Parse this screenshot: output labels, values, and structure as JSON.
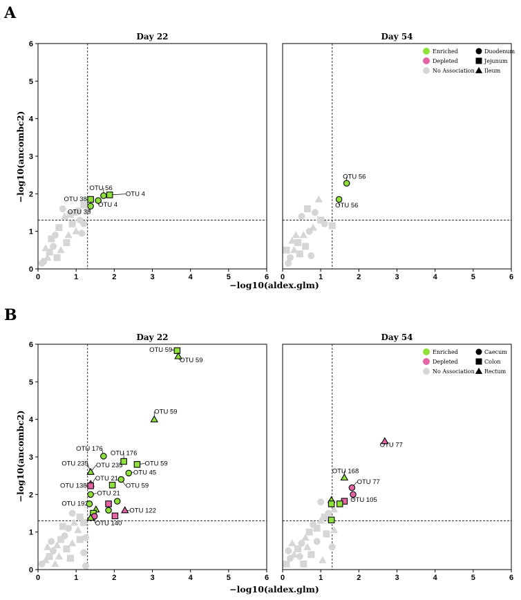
{
  "figure": {
    "panel_labels": [
      "A",
      "B"
    ],
    "xlabel": "−log10(aldex.glm)",
    "ylabel": "−log10(ancombc2)"
  },
  "legends": {
    "A": {
      "associations": [
        {
          "label": "Enriched",
          "color": "#8fe03a"
        },
        {
          "label": "Depleted",
          "color": "#e465a6"
        },
        {
          "label": "No Association",
          "color": "#d6d6d6"
        }
      ],
      "sites": [
        {
          "label": "Duodenum",
          "shape": "circle"
        },
        {
          "label": "Jejunum",
          "shape": "square"
        },
        {
          "label": "Ileum",
          "shape": "triangle"
        }
      ]
    },
    "B": {
      "associations": [
        {
          "label": "Enriched",
          "color": "#8fe03a"
        },
        {
          "label": "Depleted",
          "color": "#e465a6"
        },
        {
          "label": "No Association",
          "color": "#d6d6d6"
        }
      ],
      "sites": [
        {
          "label": "Caecum",
          "shape": "circle"
        },
        {
          "label": "Colon",
          "shape": "square"
        },
        {
          "label": "Rectum",
          "shape": "triangle"
        }
      ]
    }
  },
  "colors": {
    "enriched": "#8fe03a",
    "depleted": "#e465a6",
    "none": "#d6d6d6"
  },
  "chart_data": [
    {
      "type": "scatter",
      "id": "A-day22",
      "panel": "A",
      "title": "Day 22",
      "xlabel": "−log10(aldex.glm)",
      "ylabel": "−log10(ancombc2)",
      "xlim": [
        0,
        6
      ],
      "ylim": [
        0,
        6
      ],
      "xticks": [
        0,
        1,
        2,
        3,
        4,
        5,
        6
      ],
      "yticks": [
        0,
        1,
        2,
        3,
        4,
        5,
        6
      ],
      "thresholds": {
        "x": 1.3,
        "y": 1.3
      },
      "grid": false,
      "no_association_points": [
        [
          0.45,
          0.9
        ],
        [
          0.55,
          1.1
        ],
        [
          0.7,
          1.4
        ],
        [
          0.65,
          1.6
        ],
        [
          0.85,
          1.45
        ],
        [
          0.95,
          1.5
        ],
        [
          1.05,
          1.55
        ],
        [
          1.2,
          1.7
        ],
        [
          1.3,
          1.6
        ],
        [
          1.1,
          1.3
        ],
        [
          0.9,
          1.2
        ],
        [
          1.0,
          1.0
        ],
        [
          1.2,
          1.2
        ],
        [
          0.75,
          0.7
        ],
        [
          0.6,
          0.5
        ],
        [
          0.4,
          0.6
        ],
        [
          0.3,
          0.45
        ],
        [
          0.25,
          0.3
        ],
        [
          0.15,
          0.2
        ],
        [
          0.5,
          0.3
        ],
        [
          0.8,
          0.9
        ],
        [
          1.15,
          0.95
        ],
        [
          0.35,
          0.8
        ],
        [
          0.2,
          0.55
        ],
        [
          0.1,
          0.15
        ]
      ],
      "points": [
        {
          "x": 1.72,
          "y": 1.95,
          "group": "enriched",
          "shape": "circle"
        },
        {
          "x": 1.58,
          "y": 1.82,
          "group": "enriched",
          "shape": "circle"
        },
        {
          "x": 1.38,
          "y": 1.67,
          "group": "enriched",
          "shape": "circle"
        },
        {
          "x": 1.38,
          "y": 1.85,
          "group": "enriched",
          "shape": "square"
        },
        {
          "x": 1.88,
          "y": 1.97,
          "group": "enriched",
          "shape": "square"
        }
      ],
      "annotations": [
        {
          "text": "OTU 56",
          "x": 1.35,
          "y": 2.1,
          "px": 1.72,
          "py": 1.95,
          "anchor": "start"
        },
        {
          "text": "OTU 4",
          "x": 2.3,
          "y": 1.94,
          "px": 1.88,
          "py": 1.97,
          "anchor": "start"
        },
        {
          "text": "OTU 38",
          "x": 0.68,
          "y": 1.8,
          "px": 1.38,
          "py": 1.85,
          "anchor": "start"
        },
        {
          "text": "OTU 4",
          "x": 1.58,
          "y": 1.66,
          "px": 1.58,
          "py": 1.82,
          "anchor": "start"
        },
        {
          "text": "OTU 38",
          "x": 0.78,
          "y": 1.46,
          "px": 1.38,
          "py": 1.67,
          "anchor": "start"
        }
      ]
    },
    {
      "type": "scatter",
      "id": "A-day54",
      "panel": "A",
      "title": "Day 54",
      "xlabel": "−log10(aldex.glm)",
      "ylabel": "",
      "xlim": [
        0,
        6
      ],
      "ylim": [
        0,
        6
      ],
      "xticks": [
        0,
        1,
        2,
        3,
        4,
        5,
        6
      ],
      "yticks": [],
      "thresholds": {
        "x": 1.3,
        "y": 1.3
      },
      "grid": false,
      "legend_position": "top-right",
      "no_association_points": [
        [
          0.5,
          1.4
        ],
        [
          0.65,
          1.6
        ],
        [
          0.95,
          1.85
        ],
        [
          0.85,
          1.5
        ],
        [
          1.0,
          1.3
        ],
        [
          0.55,
          0.9
        ],
        [
          0.7,
          1.0
        ],
        [
          0.4,
          0.7
        ],
        [
          0.3,
          0.5
        ],
        [
          0.2,
          0.3
        ],
        [
          0.6,
          0.6
        ],
        [
          0.8,
          1.1
        ],
        [
          1.1,
          1.2
        ],
        [
          1.3,
          1.15
        ],
        [
          0.35,
          0.9
        ],
        [
          0.15,
          0.15
        ],
        [
          0.45,
          0.4
        ],
        [
          0.25,
          0.75
        ],
        [
          0.75,
          0.35
        ],
        [
          0.1,
          0.5
        ]
      ],
      "points": [
        {
          "x": 1.68,
          "y": 2.28,
          "group": "enriched",
          "shape": "circle"
        },
        {
          "x": 1.48,
          "y": 1.85,
          "group": "enriched",
          "shape": "circle"
        }
      ],
      "annotations": [
        {
          "text": "OTU 56",
          "x": 1.58,
          "y": 2.4,
          "px": 1.68,
          "py": 2.28,
          "anchor": "start"
        },
        {
          "text": "OTU 56",
          "x": 1.38,
          "y": 1.64,
          "px": 1.48,
          "py": 1.85,
          "anchor": "start"
        }
      ]
    },
    {
      "type": "scatter",
      "id": "B-day22",
      "panel": "B",
      "title": "Day 22",
      "xlabel": "−log10(aldex.glm)",
      "ylabel": "−log10(ancombc2)",
      "xlim": [
        0,
        6
      ],
      "ylim": [
        0,
        6
      ],
      "xticks": [
        0,
        1,
        2,
        3,
        4,
        5,
        6
      ],
      "yticks": [
        0,
        1,
        2,
        3,
        4,
        5,
        6
      ],
      "thresholds": {
        "x": 1.3,
        "y": 1.3
      },
      "grid": false,
      "no_association_points": [
        [
          0.9,
          1.5
        ],
        [
          1.1,
          1.4
        ],
        [
          0.95,
          1.25
        ],
        [
          0.8,
          1.1
        ],
        [
          1.2,
          1.25
        ],
        [
          1.05,
          1.05
        ],
        [
          0.7,
          0.9
        ],
        [
          0.6,
          0.8
        ],
        [
          0.5,
          0.65
        ],
        [
          0.4,
          0.5
        ],
        [
          0.3,
          0.35
        ],
        [
          0.2,
          0.25
        ],
        [
          0.1,
          0.15
        ],
        [
          0.75,
          0.55
        ],
        [
          0.55,
          0.35
        ],
        [
          1.2,
          0.45
        ],
        [
          1.1,
          0.8
        ],
        [
          0.9,
          0.7
        ],
        [
          0.35,
          0.75
        ],
        [
          0.65,
          1.15
        ],
        [
          0.45,
          0.15
        ],
        [
          1.25,
          0.85
        ],
        [
          0.85,
          0.3
        ],
        [
          0.25,
          0.6
        ],
        [
          1.25,
          0.1
        ]
      ],
      "points": [
        {
          "x": 3.65,
          "y": 5.83,
          "group": "enriched",
          "shape": "square"
        },
        {
          "x": 3.68,
          "y": 5.68,
          "group": "enriched",
          "shape": "triangle"
        },
        {
          "x": 3.05,
          "y": 4.0,
          "group": "enriched",
          "shape": "triangle"
        },
        {
          "x": 1.72,
          "y": 3.02,
          "group": "enriched",
          "shape": "circle"
        },
        {
          "x": 2.25,
          "y": 2.88,
          "group": "enriched",
          "shape": "square"
        },
        {
          "x": 2.6,
          "y": 2.8,
          "group": "enriched",
          "shape": "square"
        },
        {
          "x": 1.38,
          "y": 2.6,
          "group": "enriched",
          "shape": "triangle"
        },
        {
          "x": 2.38,
          "y": 2.57,
          "group": "enriched",
          "shape": "circle"
        },
        {
          "x": 2.18,
          "y": 2.4,
          "group": "enriched",
          "shape": "circle"
        },
        {
          "x": 1.95,
          "y": 2.25,
          "group": "enriched",
          "shape": "square"
        },
        {
          "x": 1.38,
          "y": 2.28,
          "group": "depleted",
          "shape": "triangle"
        },
        {
          "x": 1.38,
          "y": 2.23,
          "group": "depleted",
          "shape": "square"
        },
        {
          "x": 1.38,
          "y": 2.0,
          "group": "enriched",
          "shape": "circle"
        },
        {
          "x": 2.08,
          "y": 1.82,
          "group": "enriched",
          "shape": "circle"
        },
        {
          "x": 1.85,
          "y": 1.75,
          "group": "depleted",
          "shape": "square"
        },
        {
          "x": 1.35,
          "y": 1.75,
          "group": "enriched",
          "shape": "circle"
        },
        {
          "x": 2.28,
          "y": 1.58,
          "group": "depleted",
          "shape": "triangle"
        },
        {
          "x": 1.85,
          "y": 1.58,
          "group": "enriched",
          "shape": "circle"
        },
        {
          "x": 1.52,
          "y": 1.6,
          "group": "enriched",
          "shape": "triangle"
        },
        {
          "x": 1.45,
          "y": 1.5,
          "group": "enriched",
          "shape": "square"
        },
        {
          "x": 2.02,
          "y": 1.43,
          "group": "depleted",
          "shape": "square"
        },
        {
          "x": 1.48,
          "y": 1.42,
          "group": "depleted",
          "shape": "circle"
        },
        {
          "x": 1.38,
          "y": 1.38,
          "group": "enriched",
          "shape": "triangle"
        }
      ],
      "annotations": [
        {
          "text": "OTU 59",
          "x": 2.92,
          "y": 5.8,
          "px": 3.65,
          "py": 5.83,
          "anchor": "start"
        },
        {
          "text": "OTU 59",
          "x": 3.72,
          "y": 5.52,
          "px": 3.68,
          "py": 5.68,
          "anchor": "start"
        },
        {
          "text": "OTU 59",
          "x": 3.05,
          "y": 4.15,
          "px": 3.05,
          "py": 4.0,
          "anchor": "start"
        },
        {
          "text": "OTU 176",
          "x": 1.0,
          "y": 3.17,
          "px": 1.72,
          "py": 3.02,
          "anchor": "start"
        },
        {
          "text": "OTU 176",
          "x": 1.9,
          "y": 3.05,
          "px": 2.25,
          "py": 2.88,
          "anchor": "start"
        },
        {
          "text": "OTU 59",
          "x": 2.8,
          "y": 2.77,
          "px": 2.6,
          "py": 2.8,
          "anchor": "start"
        },
        {
          "text": "OTU 235",
          "x": 0.62,
          "y": 2.77,
          "px": 1.38,
          "py": 2.6,
          "anchor": "start"
        },
        {
          "text": "OTU 235",
          "x": 1.52,
          "y": 2.72,
          "px": 1.38,
          "py": 2.6,
          "anchor": "start"
        },
        {
          "text": "OTU 45",
          "x": 2.5,
          "y": 2.53,
          "px": 2.38,
          "py": 2.57,
          "anchor": "start"
        },
        {
          "text": "OTU 21",
          "x": 1.5,
          "y": 2.37,
          "px": 1.38,
          "py": 2.23,
          "anchor": "start"
        },
        {
          "text": "OTU 59",
          "x": 2.3,
          "y": 2.18,
          "px": 2.18,
          "py": 2.4,
          "anchor": "start"
        },
        {
          "text": "OTU 138",
          "x": 0.58,
          "y": 2.18,
          "px": 1.38,
          "py": 2.28,
          "anchor": "start"
        },
        {
          "text": "OTU 21",
          "x": 1.55,
          "y": 1.98,
          "px": 1.38,
          "py": 2.0,
          "anchor": "start"
        },
        {
          "text": "OTU 193",
          "x": 0.62,
          "y": 1.7,
          "px": 1.35,
          "py": 1.75,
          "anchor": "start"
        },
        {
          "text": "OTU 122",
          "x": 2.4,
          "y": 1.52,
          "px": 2.28,
          "py": 1.58,
          "anchor": "start"
        },
        {
          "text": "OTU 140",
          "x": 1.5,
          "y": 1.18,
          "px": 1.48,
          "py": 1.42,
          "anchor": "start"
        }
      ]
    },
    {
      "type": "scatter",
      "id": "B-day54",
      "panel": "B",
      "title": "Day 54",
      "xlabel": "−log10(aldex.glm)",
      "ylabel": "",
      "xlim": [
        0,
        6
      ],
      "ylim": [
        0,
        6
      ],
      "xticks": [
        0,
        1,
        2,
        3,
        4,
        5,
        6
      ],
      "yticks": [],
      "thresholds": {
        "x": 1.3,
        "y": 1.3
      },
      "grid": false,
      "legend_position": "top-right",
      "no_association_points": [
        [
          1.0,
          1.8
        ],
        [
          1.1,
          1.4
        ],
        [
          1.0,
          1.3
        ],
        [
          1.2,
          1.5
        ],
        [
          0.9,
          1.1
        ],
        [
          1.35,
          1.6
        ],
        [
          0.8,
          1.2
        ],
        [
          0.7,
          1.0
        ],
        [
          0.6,
          0.85
        ],
        [
          0.5,
          0.7
        ],
        [
          0.4,
          0.55
        ],
        [
          0.3,
          0.4
        ],
        [
          0.2,
          0.3
        ],
        [
          0.1,
          0.15
        ],
        [
          0.65,
          0.6
        ],
        [
          0.9,
          0.75
        ],
        [
          1.15,
          0.95
        ],
        [
          1.35,
          1.05
        ],
        [
          0.45,
          0.35
        ],
        [
          0.75,
          0.4
        ],
        [
          0.25,
          0.7
        ],
        [
          1.3,
          0.6
        ],
        [
          0.55,
          0.15
        ],
        [
          1.05,
          0.25
        ],
        [
          0.15,
          0.5
        ]
      ],
      "points": [
        {
          "x": 2.68,
          "y": 3.42,
          "group": "depleted",
          "shape": "triangle"
        },
        {
          "x": 1.62,
          "y": 2.45,
          "group": "enriched",
          "shape": "triangle"
        },
        {
          "x": 1.82,
          "y": 2.18,
          "group": "depleted",
          "shape": "circle"
        },
        {
          "x": 1.85,
          "y": 2.0,
          "group": "depleted",
          "shape": "circle"
        },
        {
          "x": 1.62,
          "y": 1.82,
          "group": "depleted",
          "shape": "square"
        },
        {
          "x": 1.5,
          "y": 1.75,
          "group": "enriched",
          "shape": "square"
        },
        {
          "x": 1.28,
          "y": 1.85,
          "group": "enriched",
          "shape": "triangle"
        },
        {
          "x": 1.28,
          "y": 1.75,
          "group": "enriched",
          "shape": "square"
        },
        {
          "x": 1.28,
          "y": 1.32,
          "group": "enriched",
          "shape": "square"
        }
      ],
      "annotations": [
        {
          "text": "OTU 77",
          "x": 2.55,
          "y": 3.27,
          "px": 2.68,
          "py": 3.42,
          "anchor": "start"
        },
        {
          "text": "OTU 168",
          "x": 1.3,
          "y": 2.57,
          "px": 1.62,
          "py": 2.45,
          "anchor": "start"
        },
        {
          "text": "OTU 77",
          "x": 1.95,
          "y": 2.28,
          "px": 1.82,
          "py": 2.18,
          "anchor": "start"
        },
        {
          "text": "OTU 105",
          "x": 1.78,
          "y": 1.8,
          "px": 1.85,
          "py": 2.0,
          "anchor": "start"
        }
      ]
    }
  ]
}
